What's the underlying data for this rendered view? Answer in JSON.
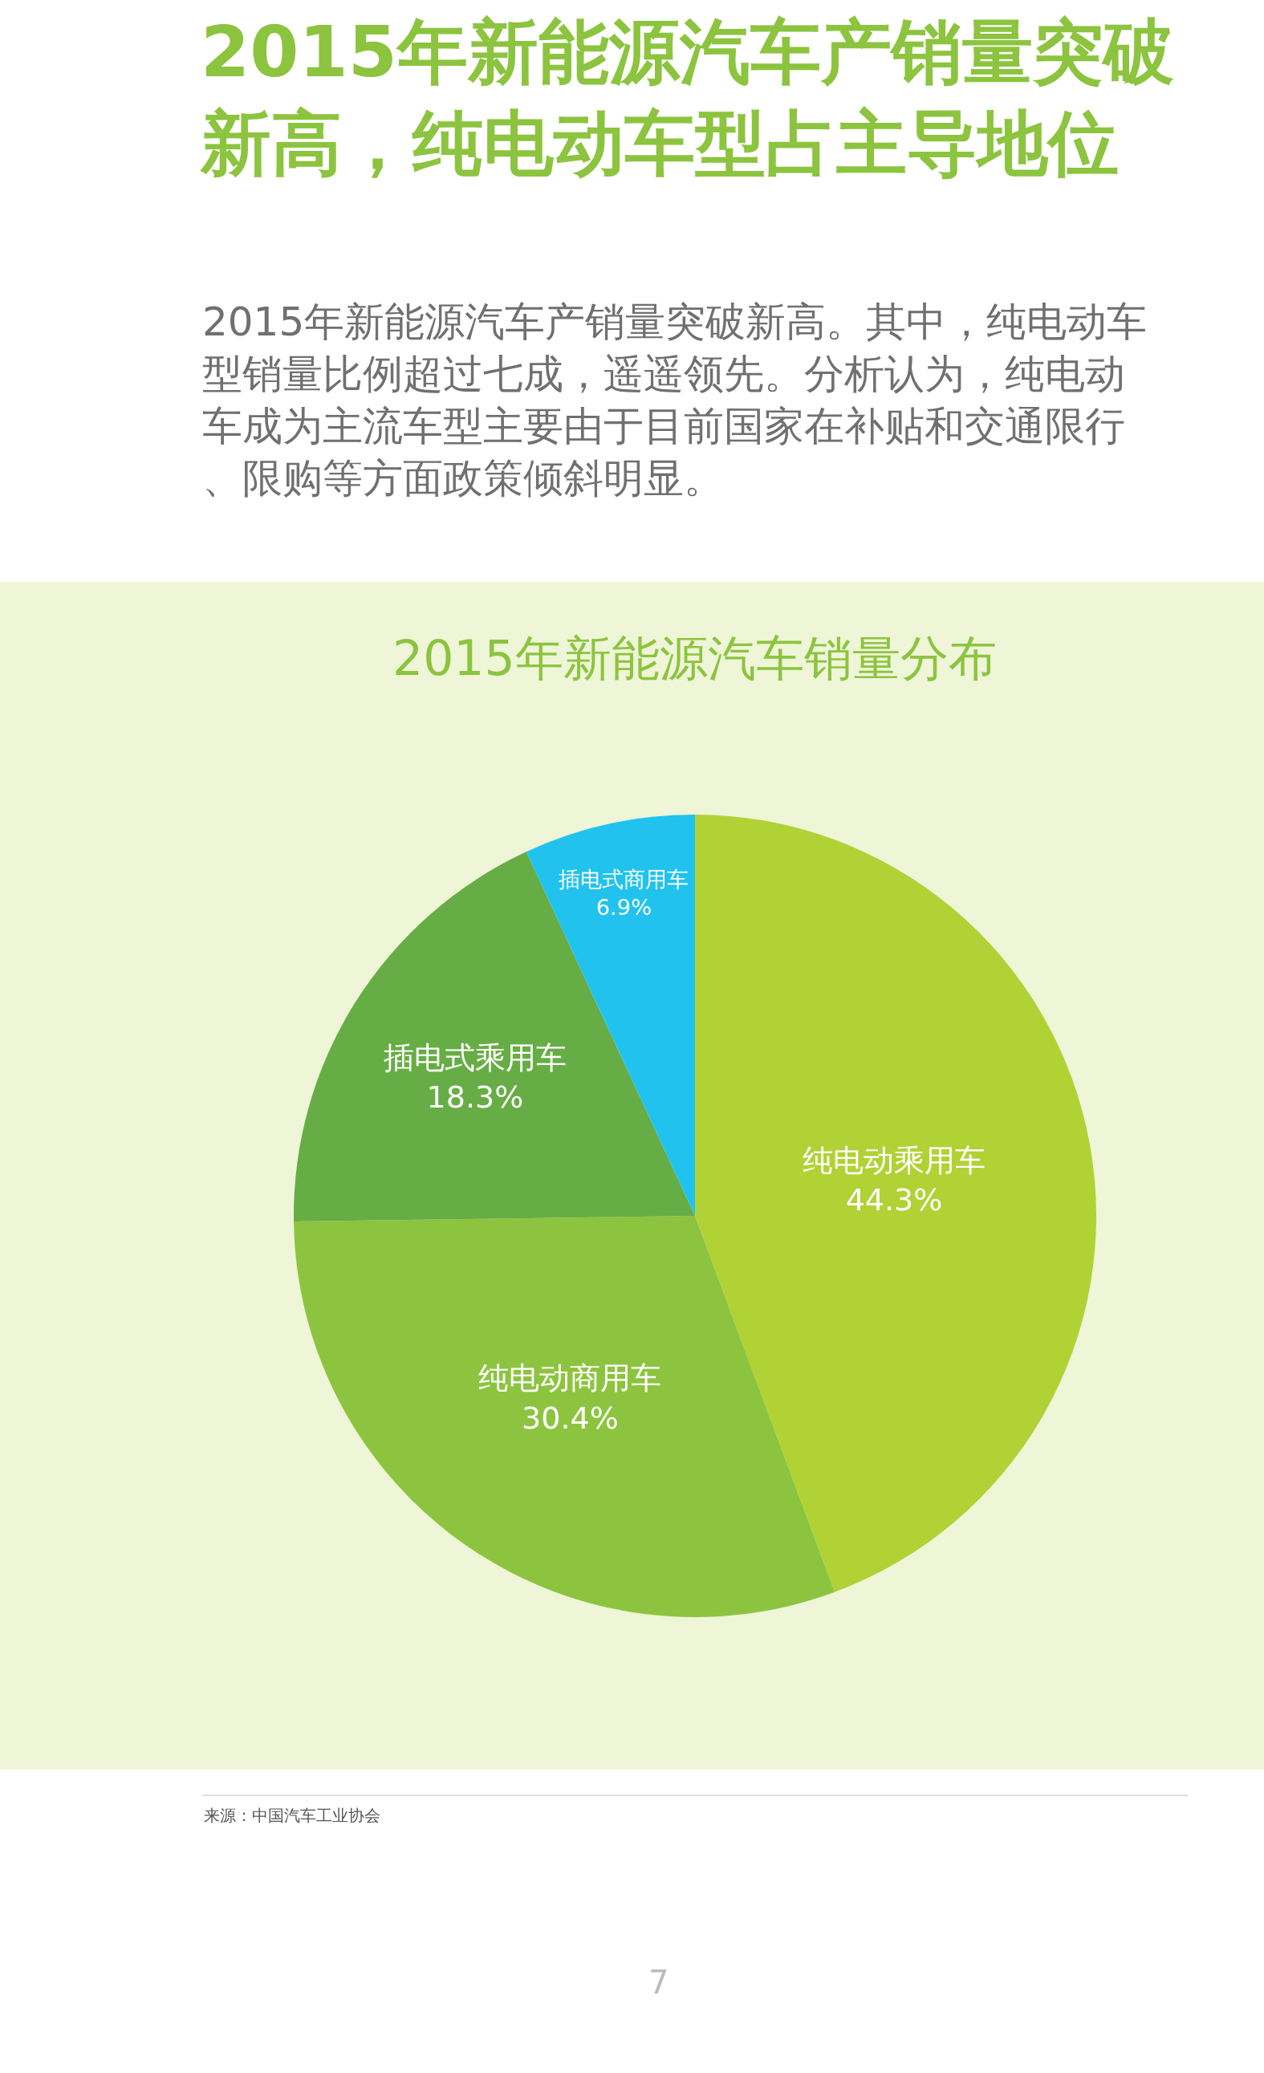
{
  "chart_data": {
    "type": "pie",
    "title": "2015年新能源汽车产销量突破新高，纯电动车型占主导地位",
    "subtitle": "2015年新能源汽车产销量突破新高。其中，纯电动车型销量比例超过七成，遥遥领先。分析认为，纯电动车成为主流车型主要由于目前国家在补贴和交通限行、限购等方面政策倾斜明显。",
    "annotations": [
      "2015年新能源汽车销量分布",
      "来源：中国汽车工业协会",
      "7"
    ],
    "categories": [
      "纯电动乘用车",
      "纯电动商用车",
      "插电式乘用车",
      "插电式商用车"
    ],
    "values": [
      44.3,
      30.4,
      18.3,
      6.9
    ],
    "value_labels": [
      "44.3%",
      "30.4%",
      "18.3%",
      "6.9%"
    ],
    "colors": [
      "#b1d235",
      "#8dc43f",
      "#67ad45",
      "#21c3ee"
    ],
    "legend": false
  }
}
